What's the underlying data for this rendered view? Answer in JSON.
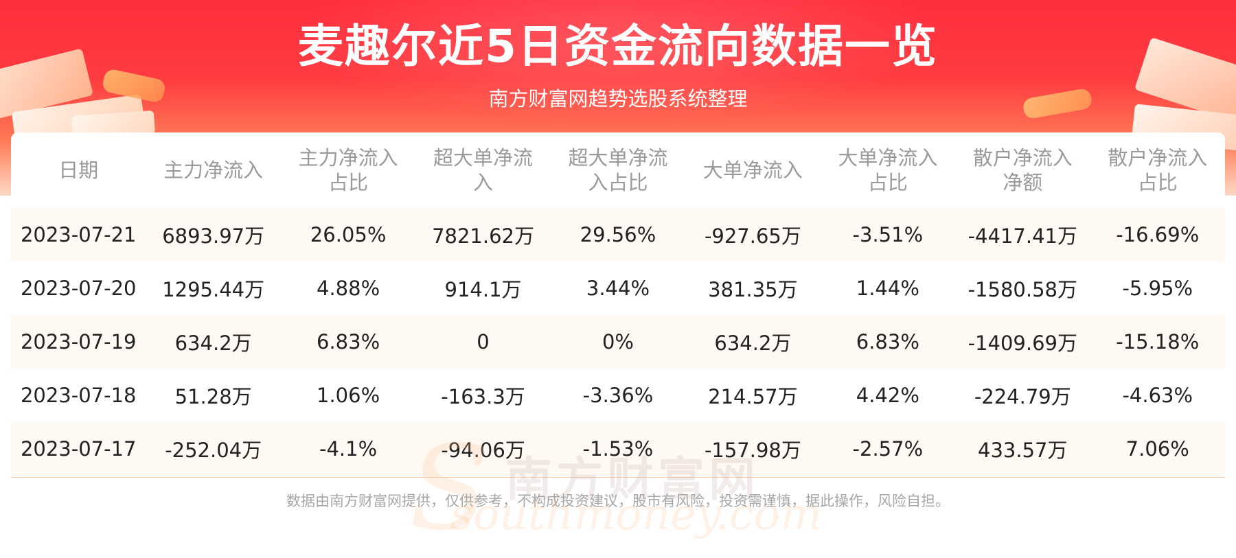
{
  "header": {
    "title": "麦趣尔近5日资金流向数据一览",
    "subtitle": "南方财富网趋势选股系统整理"
  },
  "table": {
    "columns": [
      [
        "日期"
      ],
      [
        "主力净流入"
      ],
      [
        "主力净流入",
        "占比"
      ],
      [
        "超大单净流",
        "入"
      ],
      [
        "超大单净流",
        "入占比"
      ],
      [
        "大单净流入"
      ],
      [
        "大单净流入",
        "占比"
      ],
      [
        "散户净流入",
        "净额"
      ],
      [
        "散户净流入",
        "占比"
      ]
    ],
    "rows": [
      [
        "2023-07-21",
        "6893.97万",
        "26.05%",
        "7821.62万",
        "29.56%",
        "-927.65万",
        "-3.51%",
        "-4417.41万",
        "-16.69%"
      ],
      [
        "2023-07-20",
        "1295.44万",
        "4.88%",
        "914.1万",
        "3.44%",
        "381.35万",
        "1.44%",
        "-1580.58万",
        "-5.95%"
      ],
      [
        "2023-07-19",
        "634.2万",
        "6.83%",
        "0",
        "0%",
        "634.2万",
        "6.83%",
        "-1409.69万",
        "-15.18%"
      ],
      [
        "2023-07-18",
        "51.28万",
        "1.06%",
        "-163.3万",
        "-3.36%",
        "214.57万",
        "4.42%",
        "-224.79万",
        "-4.63%"
      ],
      [
        "2023-07-17",
        "-252.04万",
        "-4.1%",
        "-94.06万",
        "-1.53%",
        "-157.98万",
        "-2.57%",
        "433.57万",
        "7.06%"
      ]
    ]
  },
  "watermark": {
    "cn": "南方财富网",
    "en": "southmoney.com"
  },
  "footer": {
    "disclaimer": "数据由南方财富网提供，仅供参考，不构成投资建议，股市有风险，投资需谨慎，据此操作，风险自担。"
  },
  "colors": {
    "banner_red": "#ff2f3e",
    "header_text": "#9a9a9a",
    "row_stripe": "#fff8f3"
  }
}
